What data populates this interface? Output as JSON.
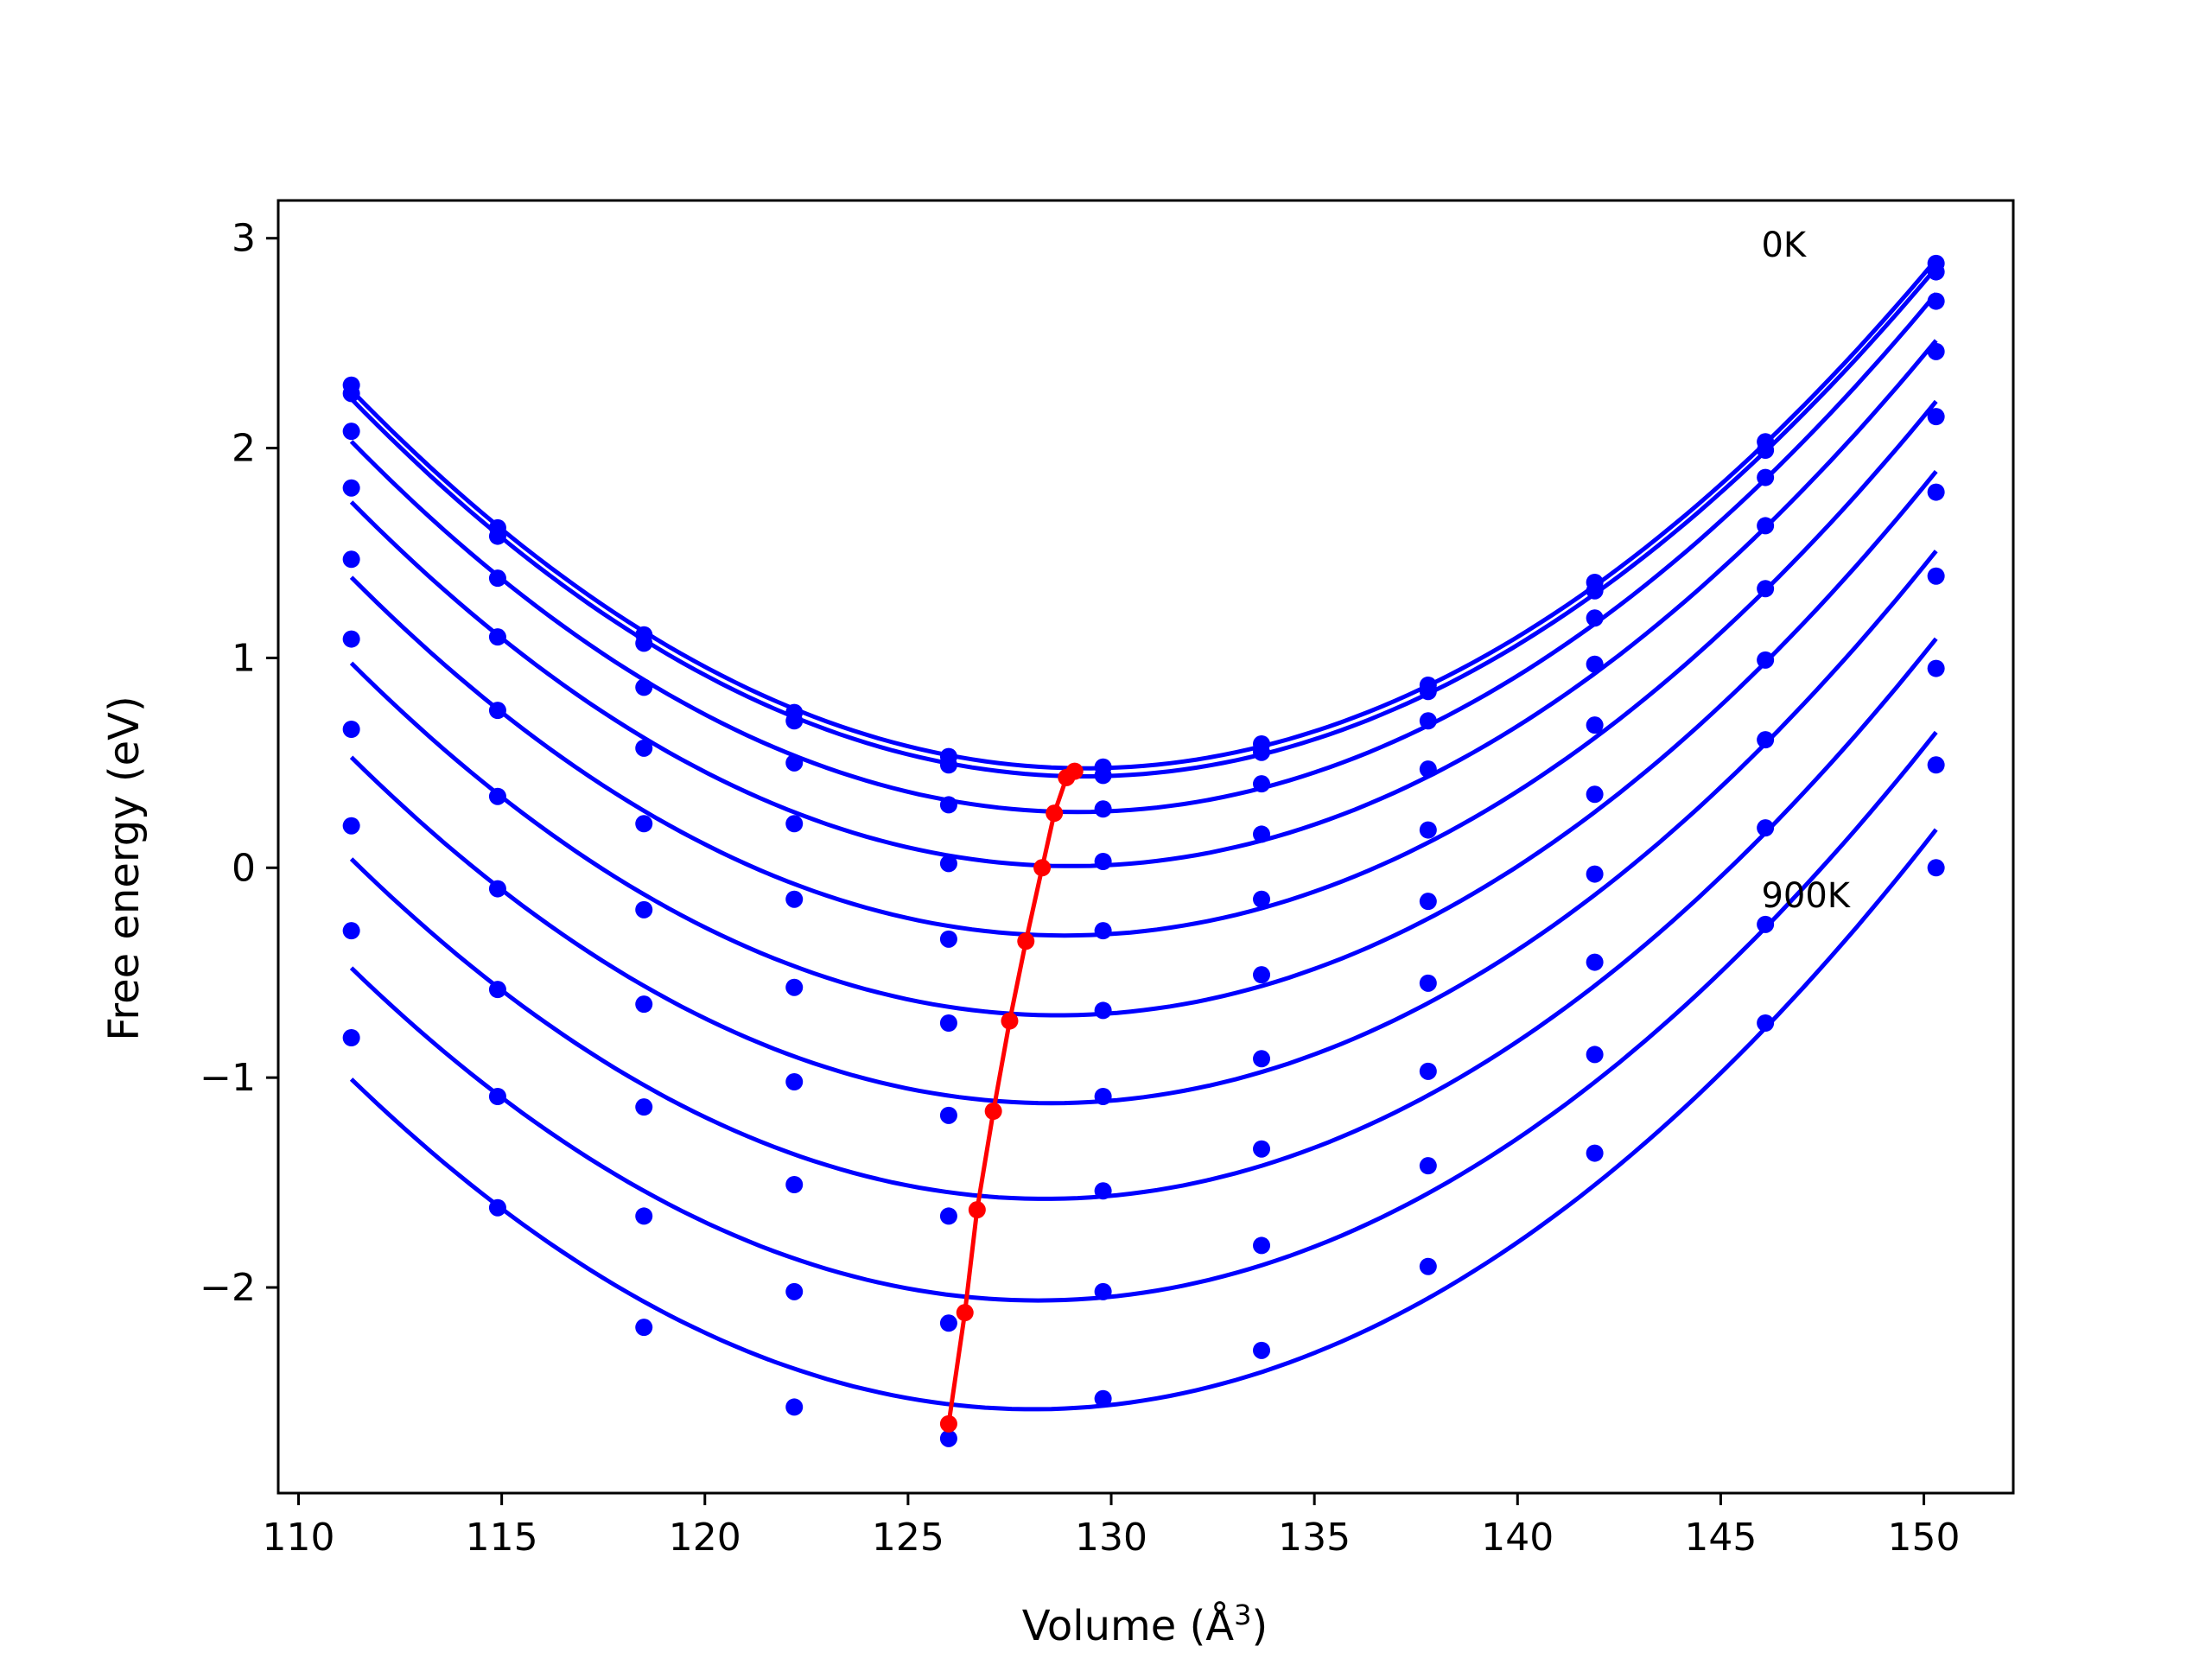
{
  "chart_data": {
    "type": "line",
    "xlabel": "Volume (Å",
    "xlabel_superscript": "3",
    "xlabel_suffix": ")",
    "ylabel": "Free energy (eV)",
    "xlim": [
      109.5,
      152.2
    ],
    "ylim": [
      -2.98,
      3.18
    ],
    "xticks": [
      {
        "value": 110,
        "label": "110"
      },
      {
        "value": 115,
        "label": "115"
      },
      {
        "value": 120,
        "label": "120"
      },
      {
        "value": 125,
        "label": "125"
      },
      {
        "value": 130,
        "label": "130"
      },
      {
        "value": 135,
        "label": "135"
      },
      {
        "value": 140,
        "label": "140"
      },
      {
        "value": 145,
        "label": "145"
      },
      {
        "value": 150,
        "label": "150"
      }
    ],
    "yticks": [
      {
        "value": -2,
        "label": "−2"
      },
      {
        "value": -1,
        "label": "−1"
      },
      {
        "value": 0,
        "label": "0"
      },
      {
        "value": 1,
        "label": "1"
      },
      {
        "value": 2,
        "label": "2"
      },
      {
        "value": 3,
        "label": "3"
      }
    ],
    "annotations": [
      {
        "text": "0K",
        "x": 146.0,
        "y": 2.97
      },
      {
        "text": "900K",
        "x": 146.0,
        "y": -0.13
      }
    ],
    "x": [
      111.3,
      114.9,
      118.5,
      122.2,
      126.0,
      129.8,
      133.7,
      137.8,
      141.9,
      146.1,
      150.3
    ],
    "series": [
      {
        "values": [
          2.3,
          1.62,
          1.11,
          0.74,
          0.53,
          0.48,
          0.59,
          0.87,
          1.36,
          2.03,
          2.88
        ]
      },
      {
        "values": [
          2.26,
          1.58,
          1.07,
          0.7,
          0.49,
          0.44,
          0.55,
          0.84,
          1.32,
          1.99,
          2.84
        ]
      },
      {
        "values": [
          2.08,
          1.38,
          0.86,
          0.5,
          0.3,
          0.28,
          0.4,
          0.7,
          1.19,
          1.86,
          2.7
        ]
      },
      {
        "values": [
          1.81,
          1.1,
          0.57,
          0.21,
          0.02,
          0.03,
          0.16,
          0.47,
          0.97,
          1.63,
          2.46
        ]
      },
      {
        "values": [
          1.47,
          0.75,
          0.21,
          -0.15,
          -0.34,
          -0.3,
          -0.15,
          0.18,
          0.68,
          1.33,
          2.15
        ]
      },
      {
        "values": [
          1.09,
          0.34,
          -0.2,
          -0.57,
          -0.74,
          -0.68,
          -0.51,
          -0.16,
          0.35,
          0.99,
          1.79
        ]
      },
      {
        "values": [
          0.66,
          -0.1,
          -0.65,
          -1.02,
          -1.18,
          -1.09,
          -0.91,
          -0.55,
          -0.03,
          0.61,
          1.39
        ]
      },
      {
        "values": [
          0.2,
          -0.58,
          -1.14,
          -1.51,
          -1.66,
          -1.54,
          -1.34,
          -0.97,
          -0.45,
          0.19,
          0.95
        ]
      },
      {
        "values": [
          -0.3,
          -1.09,
          -1.66,
          -2.02,
          -2.17,
          -2.02,
          -1.8,
          -1.42,
          -0.89,
          -0.27,
          0.49
        ]
      },
      {
        "values": [
          -0.81,
          -1.62,
          -2.19,
          -2.57,
          -2.72,
          -2.53,
          -2.3,
          -1.9,
          -1.36,
          -0.74,
          0.0
        ]
      }
    ],
    "minima": {
      "x": [
        129.1,
        128.9,
        128.6,
        128.3,
        127.9,
        127.5,
        127.1,
        126.7,
        126.4,
        126.0
      ],
      "y": [
        0.46,
        0.43,
        0.26,
        0.0,
        -0.35,
        -0.73,
        -1.16,
        -1.63,
        -2.12,
        -2.65
      ]
    },
    "colors": {
      "curves": "#0000ff",
      "minima": "#ff0000",
      "axes": "#000000"
    }
  }
}
